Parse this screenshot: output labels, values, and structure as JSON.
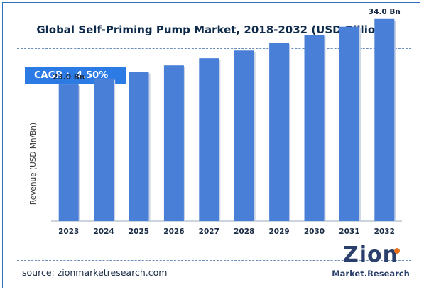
{
  "chart_data": {
    "type": "bar",
    "title": "Global Self-Priming Pump Market, 2018-2032 (USD Billion)",
    "ylabel": "Revenue (USD Mn/Bn)",
    "xlabel": "",
    "categories": [
      "2023",
      "2024",
      "2025",
      "2026",
      "2027",
      "2028",
      "2029",
      "2030",
      "2031",
      "2032"
    ],
    "values": [
      23.0,
      24.0,
      25.1,
      26.2,
      27.4,
      28.7,
      30.0,
      31.3,
      32.7,
      34.0
    ],
    "data_labels": [
      {
        "index": 0,
        "text": "23.0 Bn"
      },
      {
        "index": 9,
        "text": "34.0 Bn"
      }
    ],
    "ylim": [
      0,
      36
    ],
    "grid": false,
    "legend": "none",
    "bar_color": "#4a7fd8"
  },
  "cagr_text": "CAGR :  4.50%",
  "source_text": "source: zionmarketresearch.com",
  "logo": {
    "main": "Zion",
    "sub": "Market.Research"
  },
  "colors": {
    "accent": "#2c7be5",
    "frame": "#2f6fbf"
  }
}
